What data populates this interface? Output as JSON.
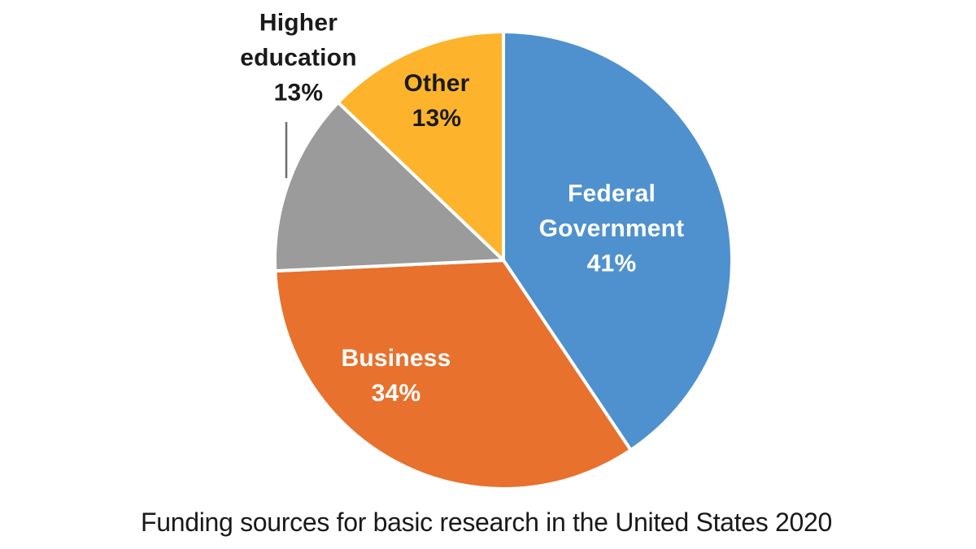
{
  "chart_data": {
    "type": "pie",
    "title": "Funding sources for basic research in the United States 2020",
    "categories": [
      "Federal Government",
      "Business",
      "Higher education",
      "Other"
    ],
    "values": [
      41,
      34,
      13,
      13
    ],
    "unit": "%",
    "start_angle_deg": 0,
    "direction": "clockwise",
    "legend": "none",
    "colors": [
      "#4F91CE",
      "#E7712D",
      "#9B9B9B",
      "#FDB42C"
    ],
    "label_colors": [
      "#FFFFFF",
      "#FFFFFF",
      "#1A1A1A",
      "#1A1A1A"
    ],
    "slice_border_color": "#FFFFFF",
    "leader_line_color": "#6E6E6E",
    "labels": [
      {
        "placement": "inside",
        "lines": [
          "Federal",
          "Government",
          "41%"
        ]
      },
      {
        "placement": "inside",
        "lines": [
          "Business",
          "34%"
        ]
      },
      {
        "placement": "outside",
        "lines": [
          "Higher",
          "education",
          "13%"
        ]
      },
      {
        "placement": "inside",
        "lines": [
          "Other",
          "13%"
        ]
      }
    ]
  }
}
